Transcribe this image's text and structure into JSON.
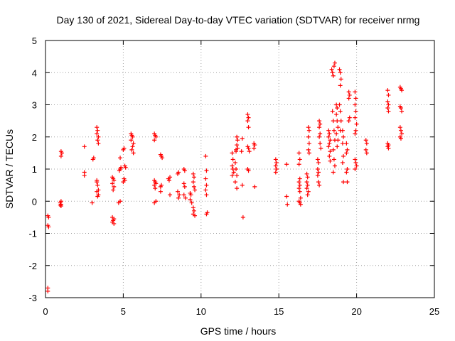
{
  "chart_data": {
    "type": "scatter",
    "title": "Day 130 of 2021, Sidereal Day-to-day VTEC variation (SDTVAR) for receiver nrmg",
    "xlabel": "GPS time / hours",
    "ylabel": "SDTVAR / TECUs",
    "xlim": [
      0,
      25
    ],
    "ylim": [
      -3,
      5
    ],
    "xticks": [
      0,
      5,
      10,
      15,
      20,
      25
    ],
    "yticks": [
      -3,
      -2,
      -1,
      0,
      1,
      2,
      3,
      4,
      5
    ],
    "grid": true,
    "marker": "+",
    "marker_color": "#ff0000",
    "series": [
      {
        "name": "SDTVAR",
        "points": [
          [
            0.15,
            -0.45
          ],
          [
            0.2,
            -0.5
          ],
          [
            0.15,
            -0.75
          ],
          [
            0.2,
            -0.8
          ],
          [
            0.15,
            -2.7
          ],
          [
            0.15,
            -2.8
          ],
          [
            0.95,
            -0.05
          ],
          [
            1.0,
            -0.1
          ],
          [
            1.0,
            -0.15
          ],
          [
            1.0,
            0.0
          ],
          [
            0.95,
            -0.12
          ],
          [
            1.0,
            1.4
          ],
          [
            1.05,
            1.5
          ],
          [
            1.0,
            1.55
          ],
          [
            2.5,
            0.8
          ],
          [
            2.5,
            0.9
          ],
          [
            2.5,
            1.7
          ],
          [
            3.05,
            1.3
          ],
          [
            3.1,
            1.35
          ],
          [
            3.0,
            -0.05
          ],
          [
            3.3,
            2.3
          ],
          [
            3.35,
            2.2
          ],
          [
            3.3,
            2.1
          ],
          [
            3.4,
            2.0
          ],
          [
            3.35,
            1.9
          ],
          [
            3.4,
            1.8
          ],
          [
            3.3,
            0.6
          ],
          [
            3.35,
            0.5
          ],
          [
            3.4,
            0.35
          ],
          [
            3.3,
            0.3
          ],
          [
            3.4,
            0.2
          ],
          [
            3.35,
            0.15
          ],
          [
            3.3,
            0.65
          ],
          [
            4.3,
            0.75
          ],
          [
            4.35,
            0.7
          ],
          [
            4.4,
            0.65
          ],
          [
            4.3,
            0.55
          ],
          [
            4.4,
            0.45
          ],
          [
            4.35,
            0.35
          ],
          [
            4.3,
            -0.5
          ],
          [
            4.4,
            -0.55
          ],
          [
            4.35,
            -0.6
          ],
          [
            4.3,
            -0.65
          ],
          [
            4.4,
            -0.7
          ],
          [
            4.8,
            0.0
          ],
          [
            4.7,
            -0.05
          ],
          [
            4.8,
            1.0
          ],
          [
            4.85,
            1.05
          ],
          [
            4.75,
            0.95
          ],
          [
            4.8,
            1.35
          ],
          [
            5.0,
            0.6
          ],
          [
            5.05,
            0.7
          ],
          [
            5.1,
            0.65
          ],
          [
            5.1,
            1.1
          ],
          [
            5.15,
            1.05
          ],
          [
            5.0,
            1.6
          ],
          [
            5.05,
            1.65
          ],
          [
            5.5,
            2.1
          ],
          [
            5.55,
            2.05
          ],
          [
            5.6,
            2.0
          ],
          [
            5.5,
            1.9
          ],
          [
            5.65,
            1.8
          ],
          [
            5.6,
            1.7
          ],
          [
            5.55,
            1.6
          ],
          [
            5.65,
            1.5
          ],
          [
            7.0,
            2.1
          ],
          [
            7.05,
            2.05
          ],
          [
            7.1,
            2.0
          ],
          [
            7.0,
            1.9
          ],
          [
            7.0,
            0.65
          ],
          [
            7.05,
            0.6
          ],
          [
            7.1,
            0.55
          ],
          [
            7.0,
            0.5
          ],
          [
            7.05,
            0.4
          ],
          [
            7.1,
            0.0
          ],
          [
            7.0,
            -0.05
          ],
          [
            7.4,
            1.45
          ],
          [
            7.45,
            1.4
          ],
          [
            7.5,
            1.35
          ],
          [
            7.4,
            0.45
          ],
          [
            7.45,
            0.5
          ],
          [
            7.4,
            0.3
          ],
          [
            7.9,
            0.7
          ],
          [
            7.95,
            0.65
          ],
          [
            8.0,
            0.75
          ],
          [
            8.0,
            0.2
          ],
          [
            8.5,
            0.85
          ],
          [
            8.55,
            0.9
          ],
          [
            8.5,
            0.3
          ],
          [
            8.6,
            0.2
          ],
          [
            8.55,
            0.1
          ],
          [
            8.9,
            1.0
          ],
          [
            8.95,
            0.95
          ],
          [
            8.9,
            0.55
          ],
          [
            8.95,
            0.45
          ],
          [
            8.9,
            0.2
          ],
          [
            9.0,
            0.1
          ],
          [
            9.3,
            0.25
          ],
          [
            9.35,
            0.2
          ],
          [
            9.3,
            0.05
          ],
          [
            9.4,
            -0.05
          ],
          [
            9.5,
            0.85
          ],
          [
            9.55,
            0.75
          ],
          [
            9.5,
            0.6
          ],
          [
            9.55,
            0.45
          ],
          [
            9.6,
            0.35
          ],
          [
            9.5,
            -0.2
          ],
          [
            9.55,
            -0.3
          ],
          [
            9.5,
            -0.4
          ],
          [
            9.6,
            -0.45
          ],
          [
            10.3,
            1.4
          ],
          [
            10.35,
            0.95
          ],
          [
            10.3,
            0.7
          ],
          [
            10.35,
            0.5
          ],
          [
            10.3,
            0.35
          ],
          [
            10.35,
            0.2
          ],
          [
            10.35,
            -0.4
          ],
          [
            10.4,
            -0.35
          ],
          [
            12.0,
            1.5
          ],
          [
            12.05,
            1.3
          ],
          [
            12.0,
            1.1
          ],
          [
            12.05,
            1.0
          ],
          [
            12.1,
            0.9
          ],
          [
            12.0,
            0.8
          ],
          [
            12.2,
            1.2
          ],
          [
            12.25,
            1.0
          ],
          [
            12.3,
            0.8
          ],
          [
            12.2,
            0.6
          ],
          [
            12.3,
            0.4
          ],
          [
            12.25,
            1.6
          ],
          [
            12.3,
            1.75
          ],
          [
            12.35,
            1.65
          ],
          [
            12.3,
            2.0
          ],
          [
            12.35,
            1.9
          ],
          [
            12.25,
            1.55
          ],
          [
            12.6,
            1.55
          ],
          [
            12.65,
            0.5
          ],
          [
            12.65,
            1.95
          ],
          [
            12.7,
            -0.5
          ],
          [
            13.0,
            2.7
          ],
          [
            13.05,
            2.6
          ],
          [
            13.0,
            2.5
          ],
          [
            13.05,
            2.3
          ],
          [
            13.0,
            1.7
          ],
          [
            13.05,
            1.65
          ],
          [
            13.1,
            1.55
          ],
          [
            13.0,
            1.0
          ],
          [
            13.05,
            0.95
          ],
          [
            13.4,
            1.8
          ],
          [
            13.45,
            1.75
          ],
          [
            13.4,
            1.65
          ],
          [
            13.45,
            0.45
          ],
          [
            14.8,
            1.3
          ],
          [
            14.85,
            1.2
          ],
          [
            14.8,
            1.1
          ],
          [
            14.85,
            1.0
          ],
          [
            14.8,
            0.9
          ],
          [
            15.5,
            0.15
          ],
          [
            15.55,
            -0.1
          ],
          [
            15.5,
            1.15
          ],
          [
            16.3,
            1.5
          ],
          [
            16.35,
            1.3
          ],
          [
            16.3,
            1.15
          ],
          [
            16.35,
            0.7
          ],
          [
            16.3,
            0.6
          ],
          [
            16.35,
            0.5
          ],
          [
            16.3,
            0.4
          ],
          [
            16.35,
            0.3
          ],
          [
            16.4,
            0.1
          ],
          [
            16.3,
            0.0
          ],
          [
            16.35,
            -0.05
          ],
          [
            16.4,
            -0.1
          ],
          [
            16.8,
            0.85
          ],
          [
            16.85,
            0.75
          ],
          [
            16.8,
            0.6
          ],
          [
            16.85,
            0.5
          ],
          [
            16.8,
            0.4
          ],
          [
            16.9,
            0.3
          ],
          [
            16.85,
            0.2
          ],
          [
            16.9,
            2.3
          ],
          [
            16.95,
            2.2
          ],
          [
            16.9,
            2.0
          ],
          [
            16.95,
            1.8
          ],
          [
            16.9,
            1.6
          ],
          [
            16.95,
            1.5
          ],
          [
            17.5,
            1.3
          ],
          [
            17.55,
            1.2
          ],
          [
            17.5,
            1.0
          ],
          [
            17.55,
            0.9
          ],
          [
            17.5,
            0.8
          ],
          [
            17.55,
            0.6
          ],
          [
            17.6,
            0.5
          ],
          [
            17.6,
            2.5
          ],
          [
            17.65,
            2.4
          ],
          [
            17.6,
            2.3
          ],
          [
            17.65,
            2.1
          ],
          [
            17.6,
            2.0
          ],
          [
            17.65,
            1.8
          ],
          [
            17.7,
            1.65
          ],
          [
            18.2,
            2.2
          ],
          [
            18.25,
            2.1
          ],
          [
            18.2,
            2.0
          ],
          [
            18.3,
            1.9
          ],
          [
            18.25,
            1.8
          ],
          [
            18.2,
            1.7
          ],
          [
            18.3,
            1.55
          ],
          [
            18.25,
            1.4
          ],
          [
            18.3,
            1.25
          ],
          [
            18.4,
            4.1
          ],
          [
            18.45,
            4.0
          ],
          [
            18.5,
            3.9
          ],
          [
            18.55,
            4.2
          ],
          [
            18.6,
            4.3
          ],
          [
            18.45,
            2.8
          ],
          [
            18.5,
            2.5
          ],
          [
            18.55,
            2.2
          ],
          [
            18.6,
            1.9
          ],
          [
            18.5,
            1.6
          ],
          [
            18.55,
            1.3
          ],
          [
            18.6,
            1.1
          ],
          [
            18.5,
            0.9
          ],
          [
            18.7,
            3.0
          ],
          [
            18.75,
            2.9
          ],
          [
            18.7,
            2.7
          ],
          [
            18.75,
            2.5
          ],
          [
            18.8,
            2.3
          ],
          [
            18.7,
            2.1
          ],
          [
            18.8,
            1.9
          ],
          [
            18.75,
            1.7
          ],
          [
            18.9,
            4.1
          ],
          [
            18.95,
            4.0
          ],
          [
            19.0,
            3.8
          ],
          [
            18.95,
            3.6
          ],
          [
            18.9,
            3.0
          ],
          [
            18.95,
            2.8
          ],
          [
            19.0,
            2.5
          ],
          [
            18.95,
            2.2
          ],
          [
            19.1,
            2.2
          ],
          [
            19.15,
            2.0
          ],
          [
            19.1,
            1.8
          ],
          [
            19.15,
            1.4
          ],
          [
            19.1,
            1.2
          ],
          [
            19.15,
            0.6
          ],
          [
            19.35,
            1.8
          ],
          [
            19.4,
            1.6
          ],
          [
            19.35,
            1.5
          ],
          [
            19.4,
            1.0
          ],
          [
            19.35,
            0.9
          ],
          [
            19.4,
            0.6
          ],
          [
            19.5,
            3.4
          ],
          [
            19.55,
            3.3
          ],
          [
            19.5,
            3.2
          ],
          [
            19.55,
            2.6
          ],
          [
            19.5,
            2.5
          ],
          [
            19.9,
            3.4
          ],
          [
            19.95,
            3.2
          ],
          [
            19.9,
            3.0
          ],
          [
            19.95,
            2.8
          ],
          [
            19.9,
            2.6
          ],
          [
            20.0,
            2.4
          ],
          [
            19.95,
            2.2
          ],
          [
            19.9,
            2.1
          ],
          [
            19.9,
            1.3
          ],
          [
            19.95,
            1.2
          ],
          [
            20.0,
            1.1
          ],
          [
            19.9,
            1.0
          ],
          [
            20.6,
            1.9
          ],
          [
            20.65,
            1.8
          ],
          [
            20.6,
            1.6
          ],
          [
            20.65,
            1.5
          ],
          [
            22.0,
            3.45
          ],
          [
            22.05,
            3.3
          ],
          [
            22.0,
            3.1
          ],
          [
            22.05,
            3.0
          ],
          [
            22.0,
            2.9
          ],
          [
            22.05,
            2.8
          ],
          [
            22.0,
            1.8
          ],
          [
            22.05,
            1.75
          ],
          [
            22.0,
            1.7
          ],
          [
            22.05,
            1.65
          ],
          [
            22.8,
            3.55
          ],
          [
            22.85,
            3.5
          ],
          [
            22.9,
            3.45
          ],
          [
            22.8,
            2.95
          ],
          [
            22.85,
            2.9
          ],
          [
            22.9,
            2.8
          ],
          [
            22.8,
            2.3
          ],
          [
            22.85,
            2.2
          ],
          [
            22.9,
            2.1
          ],
          [
            22.8,
            2.0
          ],
          [
            22.85,
            1.95
          ]
        ]
      }
    ]
  }
}
